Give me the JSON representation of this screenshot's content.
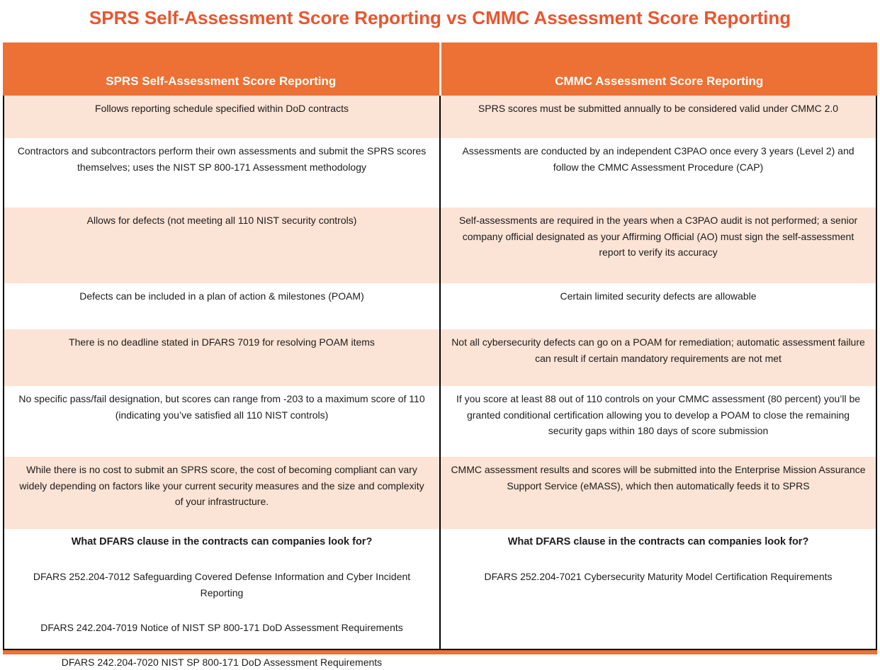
{
  "title": "SPRS Self-Assessment Score Reporting vs CMMC Assessment Score Reporting",
  "colors": {
    "accent_orange": "#ed7134",
    "title_orange": "#ea552e",
    "row_peach": "#fbe3d5",
    "row_white": "#ffffff",
    "border_black": "#000000",
    "header_text": "#ffffff"
  },
  "table": {
    "headers": {
      "left": "SPRS Self-Assessment Score Reporting",
      "right": "CMMC Assessment Score Reporting"
    },
    "rows": [
      {
        "left": "Follows reporting schedule specified within DoD contracts",
        "right": "SPRS scores must be submitted annually to be considered valid under CMMC 2.0"
      },
      {
        "left": "Contractors and subcontractors perform their own assessments and submit the SPRS scores themselves; uses the NIST SP 800-171 Assessment methodology",
        "right": "Assessments are conducted by an independent C3PAO once every 3 years (Level 2) and follow the CMMC Assessment Procedure (CAP)"
      },
      {
        "left": "Allows for defects (not meeting all 110 NIST security controls)",
        "right": "Self-assessments are required in the years when a C3PAO audit is not performed; a senior company official designated as your Affirming Official (AO) must sign the self-assessment report to verify its accuracy"
      },
      {
        "left": "Defects can be included in a plan of action & milestones (POAM)",
        "right": "Certain limited security defects are allowable"
      },
      {
        "left": "There is no deadline stated in DFARS 7019 for resolving POAM items",
        "right": "Not all cybersecurity defects can go on a POAM for remediation; automatic assessment failure can result if certain mandatory requirements are not met"
      },
      {
        "left": "No specific pass/fail designation, but scores can range from -203 to a maximum score of 110 (indicating you’ve satisfied all 110 NIST controls)",
        "right": "If you score at least 88 out of 110 controls on your CMMC assessment (80 percent) you’ll be granted conditional certification allowing you to develop a POAM to close the remaining security gaps within 180 days of score submission"
      },
      {
        "left": "While there is no cost to submit an SPRS score, the cost of becoming compliant can vary widely depending on factors like your current security measures and the size and complexity of your infrastructure.",
        "right": "CMMC assessment results and scores will be submitted into the Enterprise Mission Assurance Support Service (eMASS), which then automatically feeds it to SPRS"
      }
    ],
    "footer": {
      "question": "What DFARS clause in the contracts can companies look for?",
      "left_items": [
        "DFARS 252.204-7012 Safeguarding Covered Defense Information and Cyber Incident Reporting",
        "DFARS 242.204-7019 Notice of NIST SP 800-171 DoD Assessment Requirements",
        "DFARS 242.204-7020 NIST SP 800-171 DoD Assessment Requirements"
      ],
      "right_items": [
        "DFARS 252.204-7021 Cybersecurity Maturity Model Certification Requirements"
      ]
    }
  }
}
